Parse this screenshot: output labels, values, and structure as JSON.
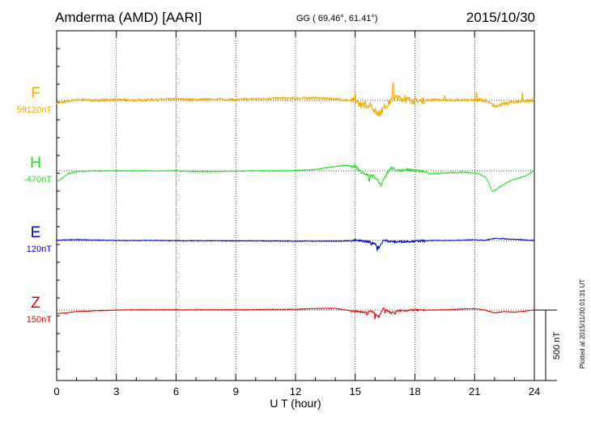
{
  "header": {
    "station": "Amderma (AMD)  [AARI]",
    "coords": "GG ( 69.46°,  61.41°)",
    "date": "2015/10/30"
  },
  "plotted_note": "Plotted at 2015/11/30 01:31  UT",
  "scale_label": "500 nT",
  "chart_data": {
    "type": "line",
    "xlabel": "U T (hour)",
    "xlim": [
      0,
      24
    ],
    "xticks": [
      "0",
      "3",
      "6",
      "9",
      "12",
      "15",
      "18",
      "21",
      "24"
    ],
    "grid": true,
    "scale_bar_nT": 500,
    "series": [
      {
        "name": "F",
        "baseline_label": "59120nT",
        "color": "#f5a800",
        "points": [
          [
            0,
            -20
          ],
          [
            0.5,
            -10
          ],
          [
            1,
            5
          ],
          [
            2,
            0
          ],
          [
            3,
            5
          ],
          [
            4,
            0
          ],
          [
            5,
            5
          ],
          [
            6,
            10
          ],
          [
            7,
            5
          ],
          [
            8,
            8
          ],
          [
            9,
            5
          ],
          [
            10,
            10
          ],
          [
            11,
            15
          ],
          [
            12,
            15
          ],
          [
            13,
            18
          ],
          [
            14,
            10
          ],
          [
            15,
            -5
          ],
          [
            15.4,
            -40
          ],
          [
            15.8,
            -30
          ],
          [
            16,
            -80
          ],
          [
            16.2,
            -100
          ],
          [
            16.5,
            -40
          ],
          [
            17,
            20
          ],
          [
            18,
            -5
          ],
          [
            19,
            5
          ],
          [
            20,
            0
          ],
          [
            21,
            5
          ],
          [
            21.5,
            0
          ],
          [
            22,
            -40
          ],
          [
            23,
            -10
          ],
          [
            24,
            0
          ]
        ],
        "spikes": [
          [
            15.0,
            40
          ],
          [
            15.5,
            20
          ],
          [
            16.2,
            30
          ],
          [
            16.9,
            115
          ],
          [
            17.5,
            30
          ],
          [
            19.5,
            35
          ],
          [
            21.1,
            45
          ],
          [
            23.4,
            55
          ]
        ]
      },
      {
        "name": "H",
        "baseline_label": "-470nT",
        "color": "#22dd22",
        "points": [
          [
            0,
            -80
          ],
          [
            0.3,
            -50
          ],
          [
            0.6,
            -20
          ],
          [
            1,
            -5
          ],
          [
            2,
            0
          ],
          [
            3,
            0
          ],
          [
            4,
            0
          ],
          [
            5,
            0
          ],
          [
            6,
            0
          ],
          [
            7,
            -5
          ],
          [
            8,
            -5
          ],
          [
            9,
            -3
          ],
          [
            10,
            0
          ],
          [
            11,
            0
          ],
          [
            12,
            2
          ],
          [
            13,
            10
          ],
          [
            14,
            30
          ],
          [
            14.5,
            40
          ],
          [
            15,
            30
          ],
          [
            15.3,
            -10
          ],
          [
            15.6,
            -30
          ],
          [
            16,
            -40
          ],
          [
            16.3,
            -100
          ],
          [
            16.5,
            -40
          ],
          [
            16.8,
            20
          ],
          [
            17.2,
            0
          ],
          [
            17.6,
            10
          ],
          [
            18.2,
            0
          ],
          [
            18.8,
            -20
          ],
          [
            19.5,
            -15
          ],
          [
            20.5,
            -10
          ],
          [
            21.2,
            -20
          ],
          [
            21.6,
            -50
          ],
          [
            21.9,
            -150
          ],
          [
            22.2,
            -120
          ],
          [
            22.8,
            -70
          ],
          [
            23.5,
            -40
          ],
          [
            24,
            0
          ]
        ],
        "spikes": [
          [
            15.1,
            10
          ],
          [
            15.7,
            -40
          ],
          [
            16.0,
            -20
          ],
          [
            16.6,
            10
          ]
        ]
      },
      {
        "name": "E",
        "baseline_label": "120nT",
        "color": "#0000cc",
        "points": [
          [
            0,
            2
          ],
          [
            1,
            5
          ],
          [
            2,
            3
          ],
          [
            3,
            0
          ],
          [
            4,
            0
          ],
          [
            5,
            0
          ],
          [
            6,
            -2
          ],
          [
            7,
            -2
          ],
          [
            8,
            -2
          ],
          [
            9,
            -3
          ],
          [
            10,
            -3
          ],
          [
            11,
            -4
          ],
          [
            12,
            -5
          ],
          [
            13,
            -5
          ],
          [
            14,
            -5
          ],
          [
            14.5,
            -3
          ],
          [
            15,
            0
          ],
          [
            15.5,
            -5
          ],
          [
            16,
            -20
          ],
          [
            16.2,
            -55
          ],
          [
            16.4,
            0
          ],
          [
            17,
            -10
          ],
          [
            18,
            -5
          ],
          [
            19,
            0
          ],
          [
            20,
            0
          ],
          [
            21,
            5
          ],
          [
            21.5,
            0
          ],
          [
            22,
            15
          ],
          [
            23,
            8
          ],
          [
            24,
            0
          ]
        ],
        "spikes": [
          [
            15.8,
            -10
          ],
          [
            16.1,
            -30
          ],
          [
            16.6,
            10
          ]
        ]
      },
      {
        "name": "Z",
        "baseline_label": "150nT",
        "color": "#dd0000",
        "points": [
          [
            0,
            -25
          ],
          [
            0.5,
            -20
          ],
          [
            1,
            -10
          ],
          [
            2,
            -5
          ],
          [
            3,
            0
          ],
          [
            4,
            2
          ],
          [
            5,
            2
          ],
          [
            6,
            2
          ],
          [
            7,
            2
          ],
          [
            8,
            2
          ],
          [
            9,
            2
          ],
          [
            10,
            3
          ],
          [
            11,
            5
          ],
          [
            12,
            5
          ],
          [
            12.5,
            8
          ],
          [
            13,
            10
          ],
          [
            14,
            12
          ],
          [
            14.3,
            5
          ],
          [
            15,
            -10
          ],
          [
            15.5,
            -15
          ],
          [
            15.8,
            -5
          ],
          [
            16,
            -25
          ],
          [
            16.2,
            -50
          ],
          [
            16.4,
            15
          ],
          [
            16.8,
            -20
          ],
          [
            17.2,
            -5
          ],
          [
            18,
            0
          ],
          [
            19,
            0
          ],
          [
            20,
            5
          ],
          [
            21,
            10
          ],
          [
            21.5,
            0
          ],
          [
            22,
            -20
          ],
          [
            22.5,
            -10
          ],
          [
            23,
            -15
          ],
          [
            24,
            0
          ]
        ],
        "spikes": [
          [
            15.6,
            -20
          ],
          [
            16.0,
            -35
          ],
          [
            16.5,
            -25
          ],
          [
            17.0,
            -15
          ]
        ]
      }
    ]
  }
}
